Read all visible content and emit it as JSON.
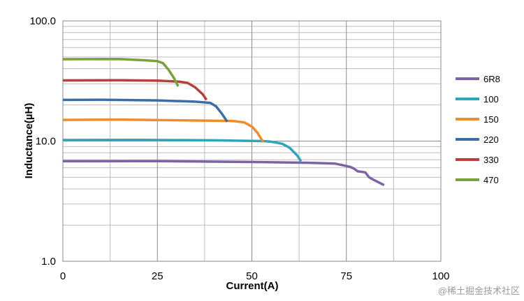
{
  "chart_data": {
    "type": "line",
    "title": "",
    "xlabel": "Current(A)",
    "ylabel": "Inductance(µH)",
    "xlim": [
      0,
      100
    ],
    "ylim": [
      1,
      100
    ],
    "yscale": "log",
    "grid": true,
    "legend_position": "right",
    "x_ticks": [
      "0",
      "25",
      "50",
      "75",
      "100"
    ],
    "y_ticks": [
      "1.0",
      "10.0",
      "100.0"
    ],
    "series": [
      {
        "name": "6R8",
        "color": "#7b64a3",
        "points": [
          [
            0,
            6.8
          ],
          [
            25,
            6.82
          ],
          [
            50,
            6.7
          ],
          [
            65,
            6.6
          ],
          [
            72,
            6.5
          ],
          [
            74,
            6.3
          ],
          [
            76,
            6.1
          ],
          [
            77,
            5.9
          ],
          [
            78,
            5.6
          ],
          [
            80,
            5.5
          ],
          [
            81,
            5.0
          ],
          [
            82,
            4.8
          ],
          [
            85,
            4.3
          ]
        ]
      },
      {
        "name": "100",
        "color": "#2ea4bd",
        "points": [
          [
            0,
            10.2
          ],
          [
            20,
            10.25
          ],
          [
            40,
            10.15
          ],
          [
            53,
            10.0
          ],
          [
            55,
            9.9
          ],
          [
            58,
            9.5
          ],
          [
            60,
            8.8
          ],
          [
            62,
            7.6
          ],
          [
            63,
            6.8
          ]
        ]
      },
      {
        "name": "150",
        "color": "#f08c2d",
        "points": [
          [
            0,
            15.0
          ],
          [
            15,
            15.1
          ],
          [
            30,
            14.9
          ],
          [
            45,
            14.7
          ],
          [
            48,
            14.3
          ],
          [
            50,
            13.2
          ],
          [
            51.5,
            11.7
          ],
          [
            53,
            9.8
          ]
        ]
      },
      {
        "name": "220",
        "color": "#3a6ea5",
        "points": [
          [
            0,
            22.0
          ],
          [
            10,
            22.1
          ],
          [
            25,
            21.8
          ],
          [
            35,
            21.3
          ],
          [
            39,
            20.8
          ],
          [
            40.5,
            19.5
          ],
          [
            42,
            17.0
          ],
          [
            43.5,
            14.5
          ]
        ]
      },
      {
        "name": "330",
        "color": "#b5413a",
        "points": [
          [
            0,
            32.0
          ],
          [
            15,
            32.1
          ],
          [
            25,
            31.8
          ],
          [
            31,
            31.2
          ],
          [
            33,
            30.5
          ],
          [
            35,
            28.0
          ],
          [
            37,
            24.5
          ],
          [
            38,
            22.0
          ]
        ]
      },
      {
        "name": "470",
        "color": "#7aa23a",
        "points": [
          [
            0,
            48.0
          ],
          [
            15,
            48.2
          ],
          [
            22,
            47.0
          ],
          [
            25,
            46.2
          ],
          [
            26.5,
            44.5
          ],
          [
            28,
            39.0
          ],
          [
            29.5,
            33.0
          ],
          [
            30.5,
            28.5
          ]
        ]
      }
    ]
  },
  "watermark": "@稀土掘金技术社区"
}
